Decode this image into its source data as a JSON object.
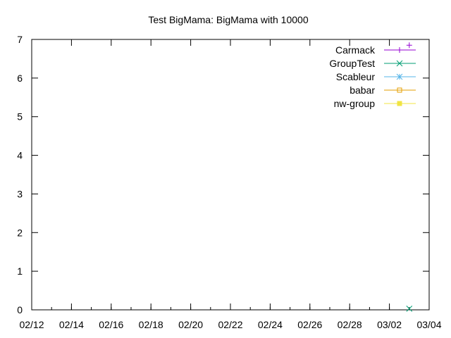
{
  "chart_data": {
    "type": "line",
    "title": "Test BigMama: BigMama with 10000",
    "xlabel": "",
    "ylabel": "",
    "x_ticks": [
      "02/12",
      "02/14",
      "02/16",
      "02/18",
      "02/20",
      "02/22",
      "02/24",
      "02/26",
      "02/28",
      "03/02",
      "03/04"
    ],
    "y_ticks": [
      "0",
      "1",
      "2",
      "3",
      "4",
      "5",
      "6",
      "7"
    ],
    "xlim": [
      "02/12",
      "03/04"
    ],
    "ylim": [
      0,
      7
    ],
    "legend_position": "top-right",
    "grid": false,
    "series": [
      {
        "name": "Carmack",
        "color": "#9400d3",
        "marker": "plus",
        "points": [
          {
            "x": "03/03",
            "y": 6.85
          }
        ]
      },
      {
        "name": "GroupTest",
        "color": "#009e73",
        "marker": "cross",
        "points": [
          {
            "x": "03/03",
            "y": 0.03
          }
        ]
      },
      {
        "name": "Scableur",
        "color": "#56b4e9",
        "marker": "star",
        "points": []
      },
      {
        "name": "babar",
        "color": "#e69f00",
        "marker": "square-open",
        "points": []
      },
      {
        "name": "nw-group",
        "color": "#f0e442",
        "marker": "square-filled",
        "points": []
      }
    ]
  }
}
